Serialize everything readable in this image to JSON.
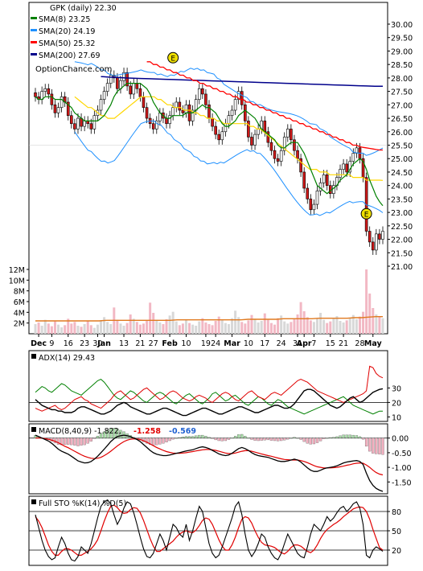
{
  "chart_data": {
    "type": "line",
    "ticker_label": "GPK (daily) 22.30",
    "watermark": "OptionChance.com",
    "legend": [
      {
        "label": "SMA(8) 23.25",
        "color": "#008000"
      },
      {
        "label": "SMA(20) 24.19",
        "color": "#1e90ff"
      },
      {
        "label": "SMA(50) 25.32",
        "color": "#ff0000"
      },
      {
        "label": "SMA(200) 27.69",
        "color": "#00008b"
      }
    ],
    "price_axis": {
      "ticks": [
        "30.00",
        "29.50",
        "29.00",
        "28.50",
        "28.00",
        "27.50",
        "27.00",
        "26.50",
        "26.00",
        "25.50",
        "25.00",
        "24.50",
        "24.00",
        "23.50",
        "23.00",
        "22.50",
        "22.00",
        "21.50",
        "21.00"
      ],
      "ylim": [
        21.0,
        30.0
      ]
    },
    "volume_axis": {
      "ticks": [
        "12M",
        "10M",
        "8M",
        "6M",
        "4M",
        "2M"
      ],
      "ylim": [
        0,
        12
      ]
    },
    "x_labels": [
      {
        "text": "Dec",
        "bold": true,
        "i": 1
      },
      {
        "text": "9",
        "i": 5
      },
      {
        "text": "16",
        "i": 10
      },
      {
        "text": "23",
        "i": 15
      },
      {
        "text": "30",
        "i": 19
      },
      {
        "text": "Jan",
        "bold": true,
        "i": 21
      },
      {
        "text": "13",
        "i": 27
      },
      {
        "text": "21",
        "i": 32
      },
      {
        "text": "27",
        "i": 36
      },
      {
        "text": "Feb",
        "bold": true,
        "i": 41
      },
      {
        "text": "10",
        "i": 46
      },
      {
        "text": "19",
        "i": 52
      },
      {
        "text": "24",
        "i": 55
      },
      {
        "text": "Mar",
        "bold": true,
        "i": 60
      },
      {
        "text": "10",
        "i": 65
      },
      {
        "text": "17",
        "i": 70
      },
      {
        "text": "24",
        "i": 75
      },
      {
        "text": "31",
        "i": 80
      },
      {
        "text": "Apr",
        "bold": true,
        "i": 82
      },
      {
        "text": "7",
        "i": 85
      },
      {
        "text": "15",
        "i": 90
      },
      {
        "text": "21",
        "i": 94
      },
      {
        "text": "28",
        "i": 99
      },
      {
        "text": "May",
        "bold": true,
        "i": 103
      }
    ],
    "markers": [
      {
        "letter": "E",
        "i": 42,
        "price": 28.75
      },
      {
        "letter": "E",
        "i": 101,
        "price": 22.95
      }
    ],
    "closes": [
      27.3,
      27.2,
      27.5,
      27.6,
      27.4,
      27.0,
      26.7,
      26.9,
      27.3,
      27.1,
      26.6,
      26.3,
      26.1,
      26.5,
      26.2,
      26.4,
      26.3,
      26.1,
      26.6,
      26.8,
      27.2,
      27.5,
      27.8,
      28.1,
      28.0,
      27.6,
      27.9,
      28.2,
      27.7,
      27.4,
      27.8,
      27.6,
      27.3,
      26.9,
      26.5,
      26.3,
      26.1,
      26.4,
      26.7,
      26.5,
      26.3,
      26.6,
      26.9,
      27.1,
      26.8,
      26.7,
      27.0,
      26.4,
      26.8,
      27.2,
      27.6,
      27.4,
      27.0,
      26.5,
      26.2,
      25.9,
      25.7,
      26.0,
      26.3,
      26.6,
      26.8,
      27.2,
      27.5,
      27.0,
      26.4,
      25.8,
      25.5,
      25.9,
      26.1,
      26.4,
      26.0,
      25.6,
      25.3,
      25.0,
      24.9,
      25.3,
      25.8,
      26.1,
      25.7,
      25.3,
      25.0,
      24.5,
      23.9,
      23.5,
      23.1,
      23.3,
      23.8,
      24.1,
      24.4,
      24.0,
      23.7,
      24.0,
      24.3,
      24.6,
      24.8,
      24.5,
      24.9,
      25.2,
      25.4,
      25.0,
      24.3,
      22.3,
      21.9,
      21.6,
      22.2,
      22.0,
      22.3
    ],
    "sma8": [
      27.3,
      27.2,
      27.2,
      27.3,
      27.3,
      27.3,
      27.2,
      27.2,
      27.2,
      27.1,
      27.0,
      26.9,
      26.7,
      26.6,
      26.5,
      26.4,
      26.4,
      26.4,
      26.4,
      26.4,
      26.5,
      26.6,
      26.8,
      27.0,
      27.3,
      27.5,
      27.6,
      27.7,
      27.8,
      27.8,
      27.8,
      27.8,
      27.8,
      27.7,
      27.6,
      27.4,
      27.1,
      26.9,
      26.7,
      26.6,
      26.5,
      26.5,
      26.6,
      26.6,
      26.6,
      26.6,
      26.7,
      26.7,
      26.7,
      26.8,
      26.9,
      27.0,
      26.9,
      26.9,
      26.8,
      26.7,
      26.5,
      26.3,
      26.2,
      26.2,
      26.3,
      26.4,
      26.6,
      26.7,
      26.8,
      26.7,
      26.6,
      26.5,
      26.3,
      26.1,
      26.0,
      25.9,
      25.8,
      25.7,
      25.5,
      25.4,
      25.4,
      25.5,
      25.6,
      25.6,
      25.6,
      25.4,
      25.2,
      24.9,
      24.6,
      24.3,
      24.0,
      23.9,
      23.8,
      23.7,
      23.8,
      23.9,
      24.0,
      24.2,
      24.3,
      24.4,
      24.6,
      24.8,
      24.9,
      25.0,
      24.9,
      24.6,
      24.2,
      23.9,
      23.6,
      23.4,
      23.25
    ],
    "sma20": [
      27.3,
      27.2,
      27.1,
      27.0,
      26.9,
      26.9,
      26.8,
      26.7,
      26.6,
      26.6,
      26.5,
      26.5,
      26.5,
      26.6,
      26.7,
      26.8,
      26.9,
      27.0,
      27.1,
      27.2,
      27.3,
      27.3,
      27.3,
      27.3,
      27.3,
      27.2,
      27.2,
      27.1,
      27.0,
      27.0,
      26.9,
      26.9,
      26.9,
      26.8,
      26.8,
      26.8,
      26.7,
      26.7,
      26.6,
      26.6,
      26.5,
      26.5,
      26.5,
      26.4,
      26.4,
      26.3,
      26.3,
      26.3,
      26.3,
      26.3,
      26.3,
      26.3,
      26.3,
      26.2,
      26.2,
      26.1,
      26.1,
      26.0,
      25.9,
      25.8,
      25.7,
      25.6,
      25.5,
      25.4,
      25.3,
      25.2,
      25.1,
      25.0,
      24.9,
      24.8,
      24.7,
      24.6,
      24.6,
      24.6,
      24.5,
      24.5,
      24.5,
      24.4,
      24.4,
      24.4,
      24.4,
      24.4,
      24.4,
      24.4,
      24.3,
      24.3,
      24.3,
      24.3,
      24.2,
      24.2,
      24.2,
      24.2,
      24.2,
      24.19
    ],
    "sma50": [
      28.6,
      28.6,
      28.5,
      28.5,
      28.4,
      28.4,
      28.3,
      28.3,
      28.2,
      28.2,
      28.1,
      28.1,
      28.0,
      28.0,
      27.9,
      27.9,
      27.8,
      27.8,
      27.7,
      27.7,
      27.6,
      27.6,
      27.5,
      27.5,
      27.4,
      27.4,
      27.3,
      27.3,
      27.2,
      27.2,
      27.1,
      27.1,
      27.0,
      27.0,
      26.9,
      26.9,
      26.8,
      26.8,
      26.7,
      26.7,
      26.6,
      26.6,
      26.5,
      26.5,
      26.4,
      26.4,
      26.3,
      26.3,
      26.2,
      26.2,
      26.1,
      26.1,
      26.0,
      26.0,
      25.9,
      25.9,
      25.8,
      25.8,
      25.7,
      25.7,
      25.6,
      25.6,
      25.5,
      25.5,
      25.45,
      25.42,
      25.4,
      25.38,
      25.36,
      25.34,
      25.32,
      25.32
    ],
    "sma200": [
      28.05,
      28.03,
      28.02,
      28.0,
      27.99,
      27.98,
      27.97,
      27.96,
      27.95,
      27.94,
      27.93,
      27.92,
      27.91,
      27.9,
      27.89,
      27.88,
      27.87,
      27.86,
      27.85,
      27.84,
      27.83,
      27.82,
      27.81,
      27.8,
      27.79,
      27.78,
      27.77,
      27.76,
      27.75,
      27.74,
      27.73,
      27.72,
      27.71,
      27.7,
      27.69,
      27.69
    ],
    "volume": [
      1.8,
      2.1,
      1.5,
      2.6,
      1.9,
      1.4,
      2.3,
      1.7,
      1.2,
      1.6,
      2.8,
      1.9,
      2.2,
      1.5,
      1.3,
      1.8,
      2.4,
      1.6,
      1.1,
      1.7,
      2.5,
      3.1,
      2.2,
      1.8,
      4.9,
      2.6,
      1.9,
      1.5,
      2.0,
      3.6,
      2.8,
      2.2,
      1.7,
      1.9,
      2.5,
      5.8,
      3.9,
      2.6,
      2.1,
      1.8,
      2.7,
      3.4,
      4.1,
      2.3,
      1.6,
      1.9,
      2.6,
      2.0,
      1.7,
      1.5,
      2.3,
      2.9,
      2.1,
      1.8,
      1.6,
      2.4,
      3.2,
      2.7,
      2.0,
      1.8,
      2.9,
      4.3,
      3.1,
      2.2,
      1.9,
      2.5,
      3.5,
      2.8,
      2.1,
      2.4,
      3.8,
      2.6,
      2.0,
      1.7,
      2.9,
      3.4,
      2.3,
      1.9,
      2.2,
      2.7,
      3.6,
      5.9,
      4.2,
      3.1,
      2.5,
      2.2,
      2.8,
      3.9,
      2.6,
      2.0,
      2.3,
      2.9,
      3.3,
      2.4,
      2.1,
      2.5,
      3.0,
      3.5,
      2.7,
      3.2,
      4.1,
      12.0,
      7.5,
      4.8,
      3.6,
      3.2,
      2.9
    ],
    "vol_avg": [
      2.4,
      2.4,
      2.4,
      2.4,
      2.4,
      2.4,
      2.4,
      2.4,
      2.4,
      2.4,
      2.5,
      2.5,
      2.5,
      2.5,
      2.5,
      2.5,
      2.5,
      2.5,
      2.5,
      2.5,
      2.6,
      2.6,
      2.6,
      2.6,
      2.6,
      2.6,
      2.6,
      2.6,
      2.6,
      2.6,
      2.7,
      2.7,
      2.7,
      2.7,
      2.7,
      2.8,
      2.8,
      2.8,
      2.8,
      2.8,
      2.9,
      2.9,
      2.9,
      2.9,
      2.9,
      3.0,
      3.0,
      3.1,
      3.2,
      3.2
    ],
    "adx": {
      "label": "ADX(14) 29.43",
      "ticks": [
        "30",
        "20",
        "10"
      ],
      "ylim": [
        8,
        48
      ],
      "adx": [
        22,
        20,
        18,
        17,
        16,
        15,
        15,
        14,
        14,
        13,
        13,
        13,
        14,
        16,
        17,
        17,
        16,
        15,
        14,
        13,
        12,
        12,
        13,
        14,
        16,
        18,
        19,
        20,
        19,
        17,
        16,
        15,
        14,
        13,
        12,
        12,
        13,
        14,
        15,
        16,
        16,
        15,
        14,
        13,
        12,
        11,
        11,
        12,
        13,
        14,
        15,
        16,
        16,
        15,
        14,
        13,
        12,
        12,
        13,
        14,
        15,
        16,
        17,
        17,
        16,
        15,
        14,
        13,
        13,
        14,
        15,
        16,
        17,
        18,
        18,
        17,
        16,
        16,
        17,
        19,
        22,
        25,
        28,
        29,
        29,
        28,
        26,
        24,
        22,
        20,
        18,
        17,
        16,
        17,
        19,
        21,
        23,
        24,
        22,
        20,
        21,
        23,
        25,
        27,
        28,
        29,
        29.43
      ],
      "pdi": [
        27,
        29,
        31,
        30,
        28,
        27,
        29,
        31,
        33,
        32,
        30,
        28,
        27,
        26,
        25,
        27,
        29,
        31,
        33,
        35,
        36,
        34,
        31,
        28,
        25,
        23,
        22,
        24,
        26,
        28,
        27,
        25,
        23,
        21,
        20,
        22,
        24,
        26,
        27,
        26,
        24,
        22,
        20,
        19,
        21,
        23,
        25,
        26,
        24,
        22,
        20,
        19,
        21,
        23,
        26,
        27,
        25,
        23,
        21,
        22,
        24,
        25,
        23,
        21,
        19,
        18,
        20,
        22,
        24,
        23,
        21,
        19,
        18,
        20,
        22,
        21,
        19,
        17,
        16,
        15,
        14,
        13,
        12,
        13,
        14,
        15,
        16,
        17,
        18,
        19,
        20,
        21,
        22,
        23,
        24,
        22,
        20,
        18,
        17,
        16,
        15,
        14,
        13,
        12,
        13,
        14,
        14
      ],
      "mdi": [
        16,
        15,
        14,
        15,
        16,
        17,
        18,
        16,
        15,
        16,
        18,
        20,
        22,
        23,
        24,
        22,
        21,
        19,
        18,
        17,
        16,
        18,
        20,
        22,
        25,
        27,
        28,
        26,
        24,
        22,
        23,
        25,
        27,
        29,
        30,
        28,
        26,
        24,
        22,
        23,
        25,
        27,
        28,
        27,
        25,
        23,
        22,
        21,
        22,
        24,
        25,
        24,
        23,
        21,
        20,
        22,
        24,
        26,
        27,
        26,
        24,
        22,
        21,
        23,
        25,
        27,
        28,
        26,
        24,
        23,
        22,
        24,
        26,
        27,
        26,
        25,
        27,
        29,
        31,
        33,
        35,
        36,
        35,
        34,
        32,
        30,
        28,
        27,
        26,
        25,
        24,
        23,
        22,
        21,
        20,
        21,
        22,
        23,
        24,
        25,
        26,
        28,
        45,
        44,
        40,
        38,
        37
      ]
    },
    "macd": {
      "label": "MACD(8,40,9) -1.822,",
      "val2": "-1.258",
      "val3": "-0.569",
      "ticks": [
        "0.00",
        "-0.50",
        "-1.00",
        "-1.50"
      ],
      "ylim": [
        -1.85,
        0.35
      ],
      "macd": [
        0.1,
        0.05,
        0.0,
        -0.05,
        -0.1,
        -0.18,
        -0.28,
        -0.38,
        -0.45,
        -0.5,
        -0.55,
        -0.62,
        -0.7,
        -0.78,
        -0.82,
        -0.85,
        -0.84,
        -0.8,
        -0.72,
        -0.62,
        -0.5,
        -0.38,
        -0.25,
        -0.12,
        -0.02,
        0.05,
        0.08,
        0.1,
        0.08,
        0.05,
        0.0,
        -0.05,
        -0.12,
        -0.22,
        -0.32,
        -0.42,
        -0.5,
        -0.55,
        -0.58,
        -0.6,
        -0.6,
        -0.58,
        -0.55,
        -0.52,
        -0.5,
        -0.47,
        -0.44,
        -0.42,
        -0.4,
        -0.36,
        -0.32,
        -0.3,
        -0.32,
        -0.36,
        -0.42,
        -0.48,
        -0.54,
        -0.58,
        -0.6,
        -0.58,
        -0.52,
        -0.44,
        -0.36,
        -0.32,
        -0.36,
        -0.42,
        -0.5,
        -0.56,
        -0.6,
        -0.62,
        -0.64,
        -0.66,
        -0.7,
        -0.74,
        -0.78,
        -0.8,
        -0.8,
        -0.78,
        -0.75,
        -0.72,
        -0.75,
        -0.82,
        -0.92,
        -1.02,
        -1.1,
        -1.14,
        -1.14,
        -1.1,
        -1.05,
        -1.02,
        -1.0,
        -0.98,
        -0.95,
        -0.9,
        -0.85,
        -0.82,
        -0.8,
        -0.78,
        -0.77,
        -0.8,
        -0.9,
        -1.2,
        -1.45,
        -1.62,
        -1.72,
        -1.78,
        -1.822
      ],
      "signal": [
        0.0,
        0.0,
        0.0,
        -0.02,
        -0.04,
        -0.07,
        -0.11,
        -0.16,
        -0.22,
        -0.28,
        -0.33,
        -0.39,
        -0.45,
        -0.51,
        -0.57,
        -0.62,
        -0.66,
        -0.69,
        -0.7,
        -0.69,
        -0.66,
        -0.6,
        -0.53,
        -0.45,
        -0.36,
        -0.27,
        -0.19,
        -0.12,
        -0.07,
        -0.04,
        -0.03,
        -0.03,
        -0.05,
        -0.09,
        -0.14,
        -0.2,
        -0.26,
        -0.32,
        -0.37,
        -0.42,
        -0.46,
        -0.49,
        -0.51,
        -0.52,
        -0.52,
        -0.51,
        -0.5,
        -0.48,
        -0.46,
        -0.44,
        -0.42,
        -0.4,
        -0.39,
        -0.39,
        -0.4,
        -0.42,
        -0.45,
        -0.48,
        -0.51,
        -0.53,
        -0.53,
        -0.51,
        -0.48,
        -0.45,
        -0.43,
        -0.43,
        -0.45,
        -0.48,
        -0.51,
        -0.54,
        -0.57,
        -0.6,
        -0.62,
        -0.65,
        -0.68,
        -0.71,
        -0.73,
        -0.74,
        -0.75,
        -0.75,
        -0.75,
        -0.77,
        -0.8,
        -0.84,
        -0.89,
        -0.94,
        -0.98,
        -1.0,
        -1.02,
        -1.02,
        -1.02,
        -1.01,
        -1.0,
        -0.98,
        -0.96,
        -0.93,
        -0.91,
        -0.88,
        -0.86,
        -0.85,
        -0.86,
        -0.92,
        -1.0,
        -1.1,
        -1.18,
        -1.23,
        -1.258
      ]
    },
    "sto": {
      "label": "Full STO %K(14) %D(5)",
      "ticks": [
        "80",
        "50",
        "20"
      ],
      "ylim": [
        0,
        100
      ],
      "k": [
        75,
        55,
        35,
        20,
        10,
        5,
        8,
        25,
        40,
        30,
        15,
        5,
        3,
        10,
        25,
        20,
        15,
        30,
        50,
        70,
        88,
        95,
        98,
        92,
        75,
        60,
        70,
        85,
        95,
        92,
        78,
        60,
        40,
        22,
        10,
        8,
        15,
        30,
        45,
        35,
        20,
        40,
        60,
        55,
        45,
        40,
        60,
        35,
        50,
        70,
        88,
        80,
        55,
        30,
        15,
        8,
        12,
        25,
        40,
        55,
        70,
        88,
        95,
        75,
        45,
        20,
        10,
        18,
        30,
        45,
        40,
        25,
        15,
        8,
        5,
        15,
        30,
        45,
        35,
        25,
        15,
        10,
        8,
        25,
        45,
        60,
        55,
        50,
        60,
        72,
        65,
        70,
        78,
        85,
        88,
        80,
        85,
        92,
        95,
        85,
        60,
        12,
        8,
        20,
        25,
        22,
        18
      ],
      "d": [
        72,
        65,
        55,
        42,
        28,
        18,
        12,
        12,
        18,
        22,
        22,
        20,
        16,
        12,
        12,
        15,
        18,
        22,
        28,
        36,
        50,
        65,
        78,
        88,
        90,
        86,
        80,
        77,
        78,
        83,
        86,
        85,
        78,
        66,
        52,
        38,
        26,
        18,
        18,
        22,
        26,
        30,
        34,
        40,
        45,
        48,
        50,
        48,
        47,
        51,
        58,
        66,
        70,
        68,
        60,
        48,
        36,
        26,
        20,
        20,
        28,
        40,
        55,
        68,
        72,
        70,
        62,
        50,
        40,
        32,
        28,
        27,
        26,
        24,
        20,
        16,
        14,
        18,
        24,
        28,
        28,
        26,
        22,
        18,
        16,
        20,
        28,
        38,
        46,
        52,
        56,
        60,
        63,
        67,
        72,
        76,
        80,
        84,
        86,
        87,
        86,
        80,
        68,
        52,
        38,
        24,
        20
      ]
    }
  }
}
